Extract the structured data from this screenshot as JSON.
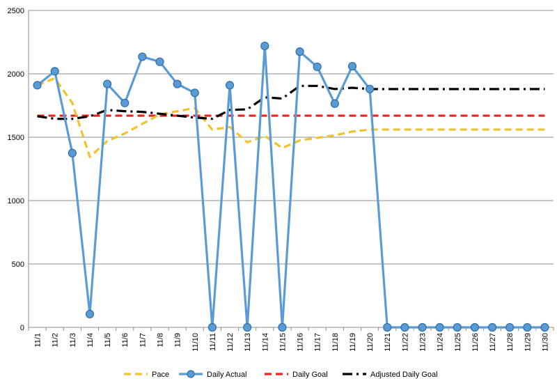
{
  "chart_data": {
    "type": "line",
    "title": "",
    "xlabel": "",
    "ylabel": "",
    "ylim": [
      0,
      2500
    ],
    "yticks": [
      0,
      500,
      1000,
      1500,
      2000,
      2500
    ],
    "grid": "horizontal",
    "legend_position": "bottom",
    "categories": [
      "11/1",
      "11/2",
      "11/3",
      "11/4",
      "11/5",
      "11/6",
      "11/7",
      "11/8",
      "11/9",
      "11/10",
      "11/11",
      "11/12",
      "11/13",
      "11/14",
      "11/15",
      "11/16",
      "11/17",
      "11/18",
      "11/19",
      "11/20",
      "11/21",
      "11/22",
      "11/23",
      "11/24",
      "11/25",
      "11/26",
      "11/27",
      "11/28",
      "11/29",
      "11/30"
    ],
    "series": [
      {
        "name": "Pace",
        "style": "dashed",
        "color": "#F2C12E",
        "values": [
          1910,
          1965,
          1770,
          1345,
          1470,
          1530,
          1605,
          1680,
          1705,
          1730,
          1560,
          1580,
          1460,
          1510,
          1415,
          1475,
          1495,
          1515,
          1545,
          1560,
          1560,
          1560,
          1560,
          1560,
          1560,
          1560,
          1560,
          1560,
          1560,
          1560
        ]
      },
      {
        "name": "Daily Actual",
        "style": "solid-markers",
        "color": "#5B9BD5",
        "values": [
          1910,
          2020,
          1375,
          105,
          1920,
          1770,
          2135,
          2095,
          1920,
          1850,
          0,
          1910,
          0,
          2220,
          0,
          2175,
          2055,
          1765,
          2060,
          1880,
          0,
          0,
          0,
          0,
          0,
          0,
          0,
          0,
          0,
          0
        ]
      },
      {
        "name": "Daily Goal",
        "style": "dashed",
        "color": "#E8251F",
        "values": [
          1670,
          1670,
          1670,
          1670,
          1670,
          1670,
          1670,
          1670,
          1670,
          1670,
          1670,
          1670,
          1670,
          1670,
          1670,
          1670,
          1670,
          1670,
          1670,
          1670,
          1670,
          1670,
          1670,
          1670,
          1670,
          1670,
          1670,
          1670,
          1670,
          1670
        ]
      },
      {
        "name": "Adjusted Daily Goal",
        "style": "dash-dot",
        "color": "#000000",
        "values": [
          1665,
          1645,
          1645,
          1665,
          1715,
          1705,
          1700,
          1685,
          1670,
          1655,
          1645,
          1715,
          1720,
          1815,
          1805,
          1905,
          1905,
          1880,
          1890,
          1880,
          1880,
          1880,
          1880,
          1880,
          1880,
          1880,
          1880,
          1880,
          1880,
          1880
        ]
      }
    ]
  }
}
